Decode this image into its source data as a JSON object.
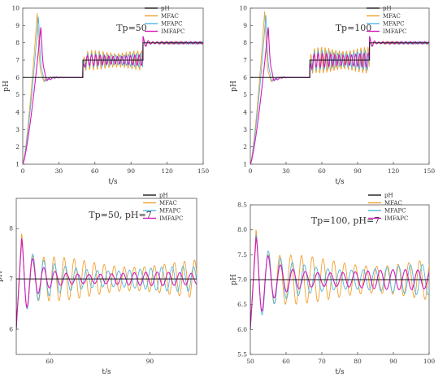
{
  "colors": {
    "pH": "#1a1a1a",
    "MFAC": "#f0a030",
    "MFAPC": "#4fb6e0",
    "IMFAPC": "#d61ab8",
    "axis": "#555555"
  },
  "chart_data": [
    {
      "type": "line",
      "title": "Tp=50",
      "xlabel": "t/s",
      "ylabel": "pH",
      "xlim": [
        0,
        150
      ],
      "ylim": [
        1,
        10
      ],
      "xticks": [
        0,
        30,
        60,
        90,
        120,
        150
      ],
      "yticks": [
        1,
        2,
        3,
        4,
        5,
        6,
        7,
        8,
        9,
        10
      ],
      "ytick_labels": [
        "1",
        "2",
        "3",
        "4",
        "5",
        "6",
        "7",
        "8",
        "9",
        "10"
      ],
      "legend": "top-right",
      "setpoint": [
        [
          0,
          6
        ],
        [
          50,
          6
        ],
        [
          50,
          7
        ],
        [
          100,
          7
        ],
        [
          100,
          8
        ],
        [
          150,
          8
        ]
      ],
      "series": [
        {
          "name": "pH",
          "color_key": "pH",
          "kind": "setpoint"
        },
        {
          "name": "MFAC",
          "color_key": "MFAC",
          "peak_t": 12,
          "peak": 9.7,
          "amp": 0.55,
          "period": 3.2,
          "phase": 0.0
        },
        {
          "name": "MFAPC",
          "color_key": "MFAPC",
          "peak_t": 13,
          "peak": 9.5,
          "amp": 0.4,
          "period": 3.4,
          "phase": 0.8
        },
        {
          "name": "IMFAPC",
          "color_key": "IMFAPC",
          "peak_t": 15,
          "peak": 8.9,
          "amp": 0.3,
          "period": 3.6,
          "phase": 1.6
        }
      ]
    },
    {
      "type": "line",
      "title": "Tp=100",
      "xlabel": "t/s",
      "ylabel": "pH",
      "xlim": [
        0,
        150
      ],
      "ylim": [
        1,
        10
      ],
      "xticks": [
        0,
        30,
        60,
        90,
        120,
        150
      ],
      "yticks": [
        1,
        2,
        3,
        4,
        5,
        6,
        7,
        8,
        9,
        10
      ],
      "ytick_labels": [
        "1",
        "2",
        "3",
        "4",
        "5",
        "6",
        "7",
        "8",
        "9",
        "10"
      ],
      "legend": "top-right",
      "setpoint": [
        [
          0,
          6
        ],
        [
          50,
          6
        ],
        [
          50,
          7
        ],
        [
          100,
          7
        ],
        [
          100,
          8
        ],
        [
          150,
          8
        ]
      ],
      "series": [
        {
          "name": "pH",
          "color_key": "pH",
          "kind": "setpoint"
        },
        {
          "name": "MFAC",
          "color_key": "MFAC",
          "peak_t": 12,
          "peak": 9.8,
          "amp": 0.75,
          "period": 3.0,
          "phase": 0.0
        },
        {
          "name": "MFAPC",
          "color_key": "MFAPC",
          "peak_t": 13,
          "peak": 9.6,
          "amp": 0.55,
          "period": 3.3,
          "phase": 0.9
        },
        {
          "name": "IMFAPC",
          "color_key": "IMFAPC",
          "peak_t": 15,
          "peak": 8.9,
          "amp": 0.4,
          "period": 3.5,
          "phase": 1.7
        }
      ]
    },
    {
      "type": "line",
      "title": "Tp=50, pH=7",
      "xlabel": "t/s",
      "ylabel": "pH",
      "xlim": [
        50,
        104
      ],
      "ylim": [
        5.5,
        8.6
      ],
      "xticks": [
        60,
        90
      ],
      "yticks": [
        6,
        7,
        8
      ],
      "ytick_labels": [
        "6",
        "7",
        "8"
      ],
      "legend": "top-right",
      "setpoint": [
        [
          50,
          6
        ],
        [
          50,
          7
        ],
        [
          104,
          7
        ]
      ],
      "series": [
        {
          "name": "pH",
          "color_key": "pH",
          "kind": "setpoint"
        },
        {
          "name": "MFAC",
          "color_key": "MFAC",
          "start": 6.0,
          "peak": 7.9,
          "amp": 0.5,
          "period": 3.0,
          "phase": 0.0,
          "decay": 0.25
        },
        {
          "name": "MFAPC",
          "color_key": "MFAPC",
          "start": 6.0,
          "peak": 7.75,
          "amp": 0.35,
          "period": 3.2,
          "phase": 1.0,
          "decay": 0.3
        },
        {
          "name": "IMFAPC",
          "color_key": "IMFAPC",
          "start": 6.0,
          "peak": 7.8,
          "amp": 0.2,
          "period": 3.4,
          "phase": 2.0,
          "decay": 0.35
        }
      ]
    },
    {
      "type": "line",
      "title": "Tp=100, pH=7",
      "xlabel": "t/s",
      "ylabel": "pH",
      "xlim": [
        50,
        100
      ],
      "ylim": [
        5.5,
        8.5
      ],
      "xticks": [
        50,
        60,
        70,
        80,
        90,
        100
      ],
      "yticks": [
        5.5,
        6.0,
        6.5,
        7.0,
        7.5,
        8.0,
        8.5
      ],
      "ytick_labels": [
        "5.5",
        "6.0",
        "6.5",
        "7.0",
        "7.5",
        "8.0",
        "8.5"
      ],
      "legend": "top-right",
      "setpoint": [
        [
          50,
          6
        ],
        [
          50,
          7
        ],
        [
          100,
          7
        ]
      ],
      "series": [
        {
          "name": "pH",
          "color_key": "pH",
          "kind": "setpoint"
        },
        {
          "name": "MFAC",
          "color_key": "MFAC",
          "start": 6.0,
          "peak": 8.0,
          "amp": 0.55,
          "period": 3.0,
          "phase": 0.0,
          "decay": 0.2
        },
        {
          "name": "MFAPC",
          "color_key": "MFAPC",
          "start": 6.0,
          "peak": 7.9,
          "amp": 0.4,
          "period": 3.3,
          "phase": 1.0,
          "decay": 0.25
        },
        {
          "name": "IMFAPC",
          "color_key": "IMFAPC",
          "start": 6.0,
          "peak": 7.85,
          "amp": 0.3,
          "period": 3.5,
          "phase": 2.0,
          "decay": 0.35
        }
      ]
    }
  ]
}
